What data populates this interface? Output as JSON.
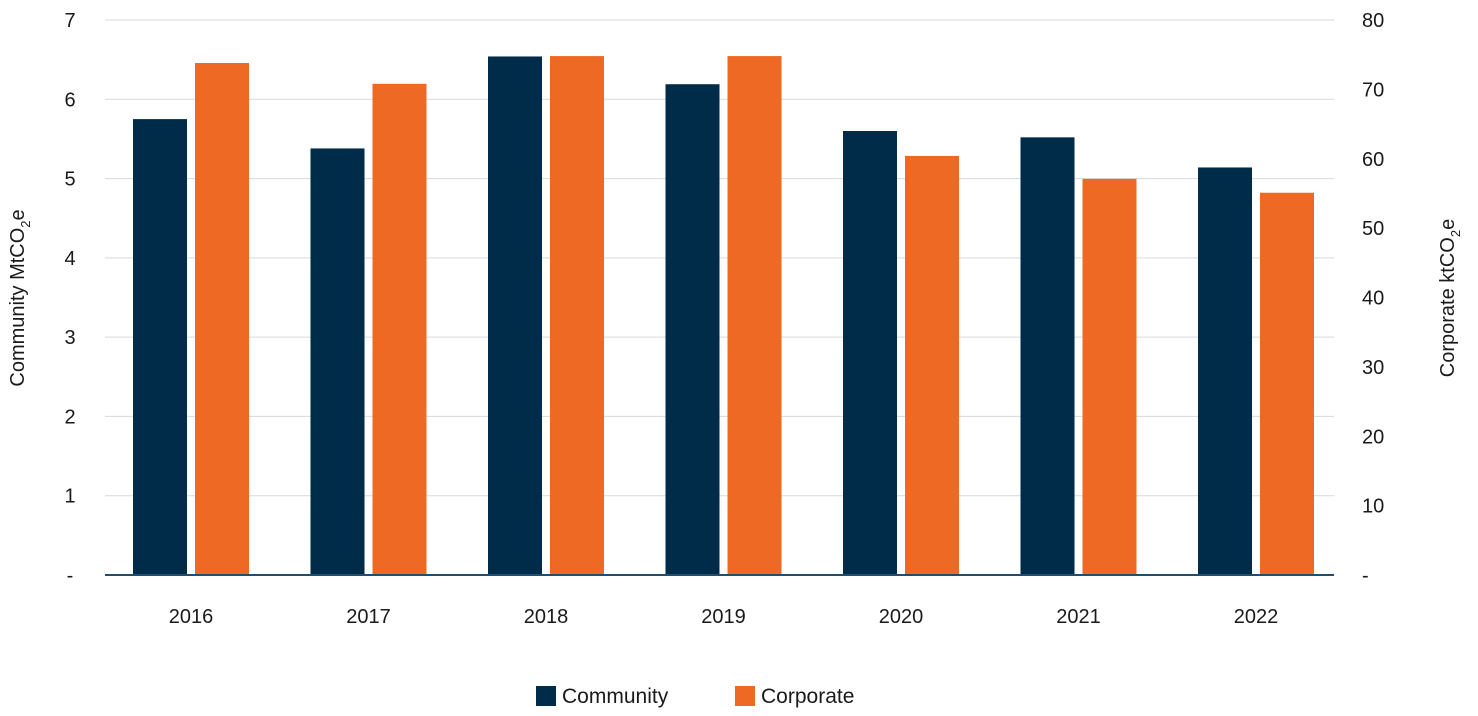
{
  "chart_data": {
    "type": "bar",
    "categories": [
      "2016",
      "2017",
      "2018",
      "2019",
      "2020",
      "2021",
      "2022"
    ],
    "series": [
      {
        "name": "Community",
        "axis": "left",
        "color": "#002b49",
        "values": [
          5.75,
          5.38,
          6.54,
          6.19,
          5.6,
          5.52,
          5.14
        ]
      },
      {
        "name": "Corporate",
        "axis": "right",
        "color": "#ee6a24",
        "values": [
          73.8,
          70.8,
          74.8,
          74.8,
          60.4,
          57.1,
          55.1
        ]
      }
    ],
    "left_axis": {
      "label_main": "Community MtCO",
      "label_sub": "2",
      "label_tail": "e",
      "ticks": [
        "-",
        "1",
        "2",
        "3",
        "4",
        "5",
        "6",
        "7"
      ],
      "ylim": [
        0,
        7
      ]
    },
    "right_axis": {
      "label_main": "Corporate ktCO",
      "label_sub": "2",
      "label_tail": "e",
      "ticks": [
        "-",
        "10",
        "20",
        "30",
        "40",
        "50",
        "60",
        "70",
        "80"
      ],
      "ylim": [
        0,
        80
      ]
    },
    "grid": true,
    "gridline_color": "#d9d9d9",
    "baseline_color": "#1f4e6e",
    "legend_position": "bottom-center",
    "legend": [
      "Community",
      "Corporate"
    ]
  }
}
